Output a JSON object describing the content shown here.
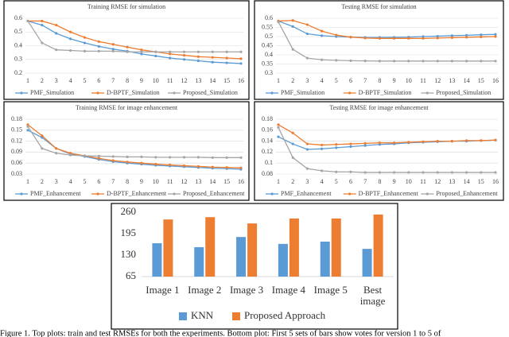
{
  "chart_data": [
    {
      "type": "line",
      "title": "Training RMSE for simulation",
      "x": [
        1,
        2,
        3,
        4,
        5,
        6,
        7,
        8,
        9,
        10,
        11,
        12,
        13,
        14,
        15,
        16
      ],
      "ylim": [
        0.2,
        0.6
      ],
      "yticks": [
        0.2,
        0.3,
        0.4,
        0.5,
        0.6
      ],
      "grid": true,
      "series": [
        {
          "name": "PMF_Simulation",
          "color": "#5b9bd5",
          "values": [
            0.58,
            0.55,
            0.49,
            0.45,
            0.42,
            0.395,
            0.375,
            0.36,
            0.34,
            0.325,
            0.31,
            0.3,
            0.29,
            0.28,
            0.275,
            0.27
          ]
        },
        {
          "name": "D-BPTF_Simulation",
          "color": "#ed7d31",
          "values": [
            0.58,
            0.58,
            0.55,
            0.5,
            0.46,
            0.43,
            0.41,
            0.39,
            0.37,
            0.355,
            0.34,
            0.33,
            0.32,
            0.315,
            0.31,
            0.305
          ]
        },
        {
          "name": "Proposed_Simulation",
          "color": "#a5a5a5",
          "values": [
            0.58,
            0.42,
            0.37,
            0.365,
            0.36,
            0.36,
            0.36,
            0.355,
            0.355,
            0.355,
            0.355,
            0.355,
            0.355,
            0.355,
            0.355,
            0.355
          ]
        }
      ]
    },
    {
      "type": "line",
      "title": "Testing RMSE for simulation",
      "x": [
        1,
        2,
        3,
        4,
        5,
        6,
        7,
        8,
        9,
        10,
        11,
        12,
        13,
        14,
        15,
        16
      ],
      "ylim": [
        0.3,
        0.6
      ],
      "yticks": [
        0.3,
        0.35,
        0.4,
        0.45,
        0.5,
        0.55,
        0.6
      ],
      "grid": true,
      "series": [
        {
          "name": "PMF_Simulation",
          "color": "#5b9bd5",
          "values": [
            0.585,
            0.555,
            0.515,
            0.505,
            0.5,
            0.497,
            0.495,
            0.495,
            0.496,
            0.497,
            0.5,
            0.502,
            0.505,
            0.507,
            0.51,
            0.512
          ]
        },
        {
          "name": "D-BPTF_Simulation",
          "color": "#ed7d31",
          "values": [
            0.585,
            0.588,
            0.565,
            0.53,
            0.508,
            0.497,
            0.492,
            0.49,
            0.49,
            0.49,
            0.49,
            0.492,
            0.494,
            0.496,
            0.498,
            0.5
          ]
        },
        {
          "name": "Proposed_Simulation",
          "color": "#a5a5a5",
          "values": [
            0.58,
            0.43,
            0.382,
            0.373,
            0.37,
            0.368,
            0.367,
            0.366,
            0.366,
            0.366,
            0.366,
            0.366,
            0.366,
            0.366,
            0.366,
            0.366
          ]
        }
      ]
    },
    {
      "type": "line",
      "title": "Training RMSE for image enhancement",
      "x": [
        1,
        2,
        3,
        4,
        5,
        6,
        7,
        8,
        9,
        10,
        11,
        12,
        13,
        14,
        15,
        16
      ],
      "ylim": [
        0.03,
        0.18
      ],
      "yticks": [
        0.03,
        0.06,
        0.09,
        0.12,
        0.15,
        0.18
      ],
      "grid": true,
      "series": [
        {
          "name": "PMF_Enhancement",
          "color": "#5b9bd5",
          "values": [
            0.15,
            0.13,
            0.1,
            0.085,
            0.078,
            0.07,
            0.064,
            0.06,
            0.057,
            0.054,
            0.052,
            0.05,
            0.048,
            0.046,
            0.045,
            0.043
          ]
        },
        {
          "name": "D-BPTF_Enhancement",
          "color": "#ed7d31",
          "values": [
            0.165,
            0.135,
            0.1,
            0.087,
            0.08,
            0.073,
            0.067,
            0.063,
            0.06,
            0.057,
            0.055,
            0.053,
            0.051,
            0.049,
            0.048,
            0.047
          ]
        },
        {
          "name": "Proposed_Enhancement",
          "color": "#a5a5a5",
          "values": [
            0.16,
            0.1,
            0.087,
            0.082,
            0.08,
            0.079,
            0.078,
            0.077,
            0.077,
            0.076,
            0.076,
            0.076,
            0.076,
            0.075,
            0.075,
            0.075
          ]
        }
      ]
    },
    {
      "type": "line",
      "title": "Testing RMSE for image enhancement",
      "x": [
        1,
        2,
        3,
        4,
        5,
        6,
        7,
        8,
        9,
        10,
        11,
        12,
        13,
        14,
        15,
        16
      ],
      "ylim": [
        0.08,
        0.18
      ],
      "yticks": [
        0.08,
        0.1,
        0.12,
        0.14,
        0.16,
        0.18
      ],
      "grid": true,
      "series": [
        {
          "name": "PMF_Enhancement",
          "color": "#5b9bd5",
          "values": [
            0.148,
            0.135,
            0.125,
            0.126,
            0.128,
            0.13,
            0.132,
            0.134,
            0.135,
            0.137,
            0.138,
            0.139,
            0.14,
            0.14,
            0.141,
            0.142
          ]
        },
        {
          "name": "D-BPTF_Enhancement",
          "color": "#ed7d31",
          "values": [
            0.17,
            0.155,
            0.135,
            0.133,
            0.134,
            0.135,
            0.136,
            0.137,
            0.137,
            0.138,
            0.139,
            0.14,
            0.14,
            0.141,
            0.141,
            0.142
          ]
        },
        {
          "name": "Proposed_Enhancement",
          "color": "#a5a5a5",
          "values": [
            0.165,
            0.11,
            0.09,
            0.086,
            0.084,
            0.084,
            0.083,
            0.083,
            0.083,
            0.083,
            0.083,
            0.083,
            0.083,
            0.083,
            0.083,
            0.083
          ]
        }
      ]
    },
    {
      "type": "bar",
      "categories": [
        "Image 1",
        "Image 2",
        "Image 3",
        "Image 4",
        "Image 5",
        "Best image"
      ],
      "ylim": [
        65,
        260
      ],
      "yticks": [
        65,
        130,
        195,
        260
      ],
      "grid": false,
      "series": [
        {
          "name": "KNN",
          "color": "#5b9bd5",
          "values": [
            166,
            154,
            185,
            164,
            171,
            149
          ]
        },
        {
          "name": "Proposed Approach",
          "color": "#ed7d31",
          "values": [
            238,
            245,
            226,
            241,
            241,
            253
          ]
        }
      ]
    }
  ],
  "caption": "Figure 1. Top plots: train and test RMSEs for both the experiments. Bottom plot: First 5 sets of bars show votes for version 1 to 5 of"
}
